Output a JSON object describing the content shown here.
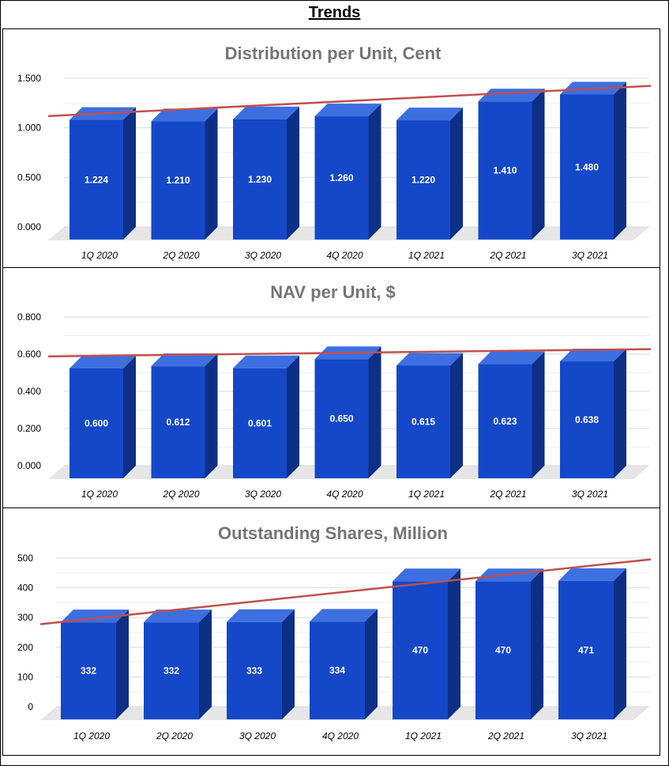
{
  "header": {
    "title": "Trends"
  },
  "chart_data": [
    {
      "type": "bar",
      "title": "Distribution per Unit, Cent",
      "categories": [
        "1Q 2020",
        "2Q 2020",
        "3Q 2020",
        "4Q 2020",
        "1Q 2021",
        "2Q 2021",
        "3Q 2021"
      ],
      "values": [
        1.224,
        1.21,
        1.23,
        1.26,
        1.22,
        1.41,
        1.48
      ],
      "value_labels": [
        "1.224",
        "1.210",
        "1.230",
        "1.260",
        "1.220",
        "1.410",
        "1.480"
      ],
      "yticks": [
        "0.000",
        "0.500",
        "1.000",
        "1.500"
      ],
      "ylim": [
        0,
        1.5
      ],
      "trendline": true,
      "grid": true,
      "colors": {
        "bar_front": "#1448C8",
        "bar_side": "#0D2F86",
        "bar_top": "#3D6FE0",
        "trend": "#C0504D",
        "floor": "#E6E6E6",
        "title": "#757575"
      }
    },
    {
      "type": "bar",
      "title": "NAV per Unit, $",
      "categories": [
        "1Q 2020",
        "2Q 2020",
        "3Q 2020",
        "4Q 2020",
        "1Q 2021",
        "2Q 2021",
        "3Q 2021"
      ],
      "values": [
        0.6,
        0.612,
        0.601,
        0.65,
        0.615,
        0.623,
        0.638
      ],
      "value_labels": [
        "0.600",
        "0.612",
        "0.601",
        "0.650",
        "0.615",
        "0.623",
        "0.638"
      ],
      "yticks": [
        "0.000",
        "0.200",
        "0.400",
        "0.600",
        "0.800"
      ],
      "ylim": [
        0,
        0.8
      ],
      "trendline": true,
      "grid": true,
      "colors": {
        "bar_front": "#1448C8",
        "bar_side": "#0D2F86",
        "bar_top": "#3D6FE0",
        "trend": "#C0504D",
        "floor": "#E6E6E6",
        "title": "#757575"
      }
    },
    {
      "type": "bar",
      "title": "Outstanding Shares, Million",
      "categories": [
        "1Q 2020",
        "2Q 2020",
        "3Q 2020",
        "4Q 2020",
        "1Q 2021",
        "2Q 2021",
        "3Q 2021"
      ],
      "values": [
        332,
        332,
        333,
        334,
        470,
        470,
        471
      ],
      "value_labels": [
        "332",
        "332",
        "333",
        "334",
        "470",
        "470",
        "471"
      ],
      "yticks": [
        "0",
        "100",
        "200",
        "300",
        "400",
        "500"
      ],
      "ylim": [
        0,
        500
      ],
      "trendline": true,
      "grid": true,
      "colors": {
        "bar_front": "#1448C8",
        "bar_side": "#0D2F86",
        "bar_top": "#3D6FE0",
        "trend": "#C0504D",
        "floor": "#E6E6E6",
        "title": "#757575"
      }
    }
  ]
}
